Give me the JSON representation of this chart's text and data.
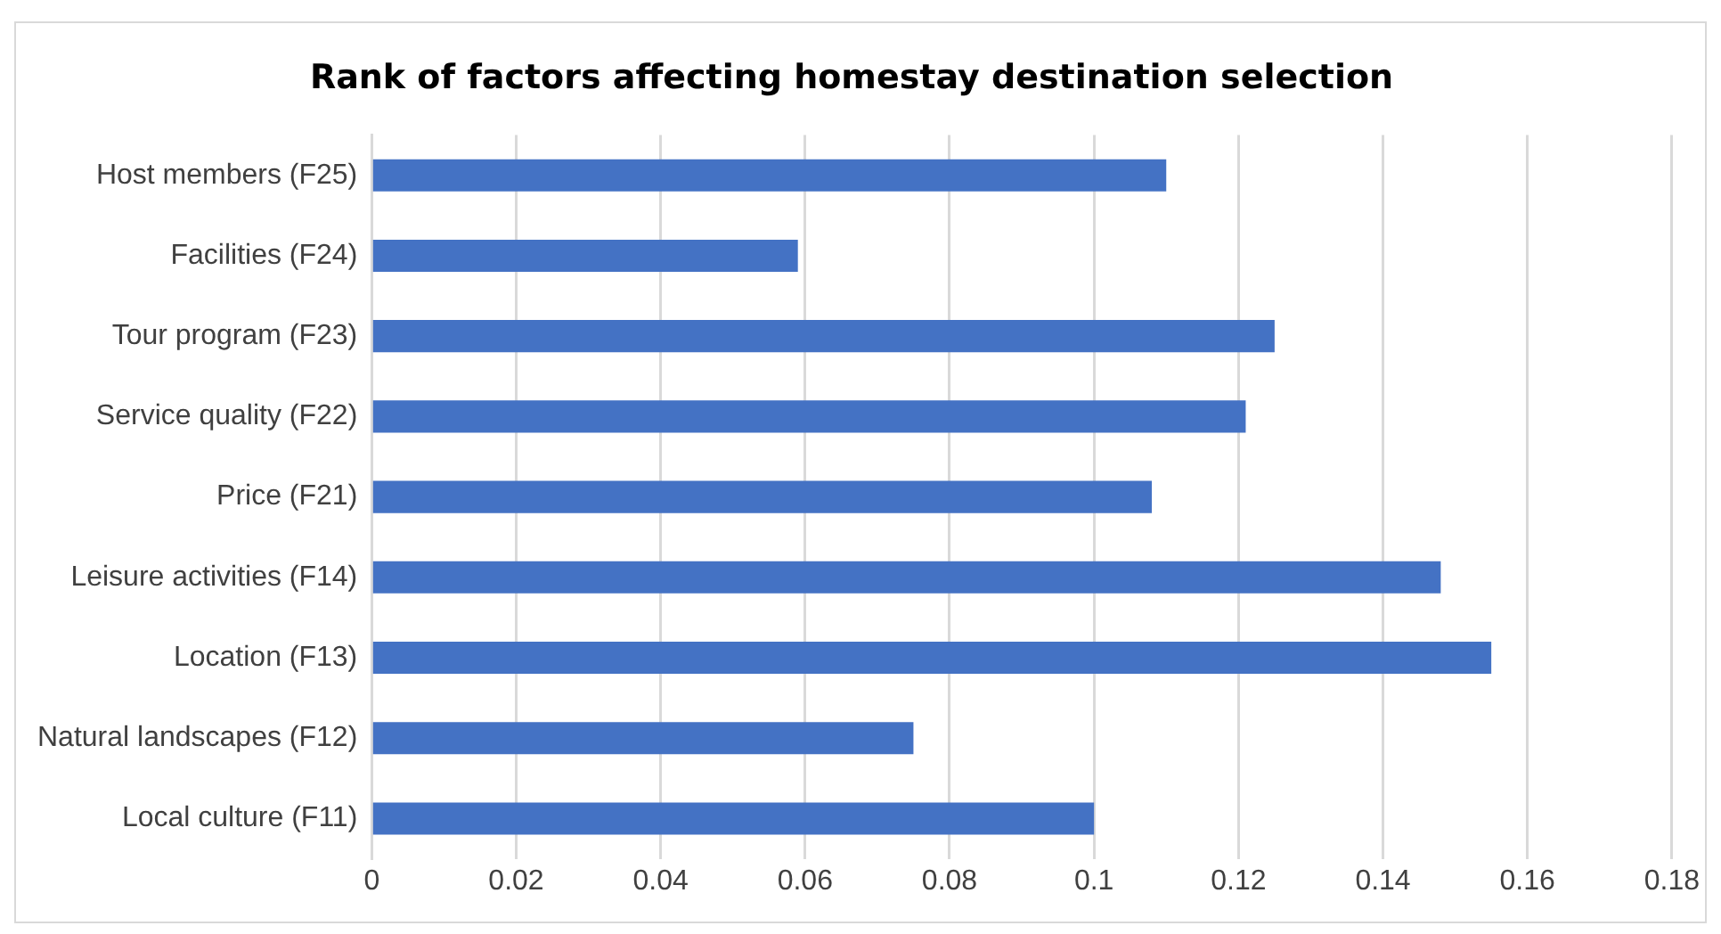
{
  "chart_data": {
    "type": "bar",
    "orientation": "horizontal",
    "title": "Rank of factors affecting homestay destination selection",
    "categories": [
      "Host members (F25)",
      "Facilities (F24)",
      "Tour program (F23)",
      "Service quality (F22)",
      "Price (F21)",
      "Leisure activities (F14)",
      "Location (F13)",
      "Natural landscapes (F12)",
      "Local culture (F11)"
    ],
    "values": [
      0.11,
      0.059,
      0.125,
      0.121,
      0.108,
      0.148,
      0.155,
      0.075,
      0.1
    ],
    "color": "#4472c4",
    "xlim": [
      0,
      0.18
    ],
    "xticks": [
      0,
      0.02,
      0.04,
      0.06,
      0.08,
      0.1,
      0.12,
      0.14,
      0.16,
      0.18
    ],
    "grid": "x"
  }
}
